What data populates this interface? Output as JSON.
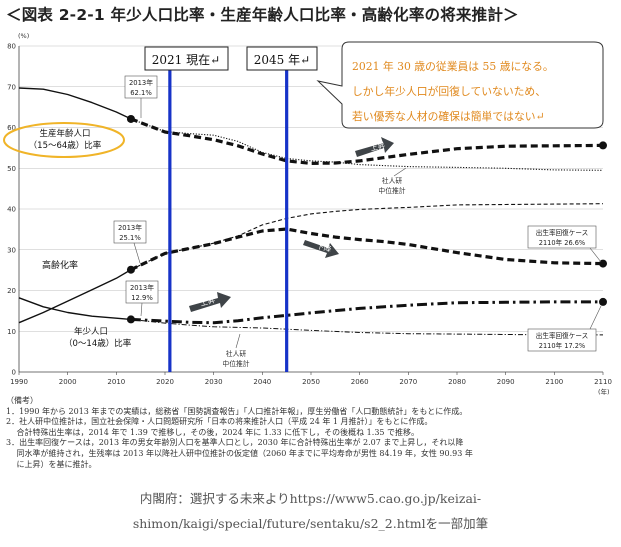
{
  "title": "＜図表 2-2-1 年少人口比率・生産年齢人口比率・高齢化率の将来推計＞",
  "chart_data": {
    "type": "line",
    "y_unit": "(%)",
    "x_unit": "(年)",
    "xlim": [
      1990,
      2110
    ],
    "ylim": [
      0,
      80
    ],
    "x_ticks": [
      1990,
      2000,
      2010,
      2020,
      2030,
      2040,
      2050,
      2060,
      2070,
      2080,
      2090,
      2100,
      2110
    ],
    "y_ticks": [
      0,
      10,
      20,
      30,
      40,
      50,
      60,
      70,
      80
    ],
    "grid": "horizontal",
    "series": [
      {
        "key": "working_actual",
        "style": "solid",
        "x": [
          1990,
          1995,
          2000,
          2005,
          2010,
          2013
        ],
        "y": [
          69.7,
          69.4,
          68.1,
          66.1,
          63.8,
          62.1
        ]
      },
      {
        "key": "working_ipss",
        "style": "dotted",
        "x": [
          2013,
          2020,
          2025,
          2030,
          2035,
          2040,
          2045,
          2050,
          2055,
          2060,
          2070,
          2080,
          2090,
          2100,
          2110
        ],
        "y": [
          62.1,
          59.0,
          58.5,
          58.1,
          56.6,
          53.9,
          52.4,
          51.8,
          51.5,
          50.9,
          50.4,
          50.2,
          50.0,
          49.6,
          49.5
        ]
      },
      {
        "key": "working_recovery",
        "style": "dashed-thick",
        "x": [
          2013,
          2020,
          2025,
          2030,
          2035,
          2040,
          2045,
          2050,
          2055,
          2060,
          2070,
          2080,
          2090,
          2100,
          2110
        ],
        "y": [
          62.1,
          58.9,
          58.0,
          57.0,
          55.5,
          53.5,
          51.8,
          51.2,
          51.3,
          51.8,
          53.4,
          54.8,
          55.4,
          55.5,
          55.6
        ]
      },
      {
        "key": "elderly_actual",
        "style": "solid",
        "x": [
          1990,
          1995,
          2000,
          2005,
          2010,
          2013
        ],
        "y": [
          12.1,
          14.6,
          17.4,
          20.2,
          23.0,
          25.1
        ]
      },
      {
        "key": "elderly_ipss",
        "style": "dashed-thin",
        "x": [
          2013,
          2020,
          2025,
          2030,
          2035,
          2040,
          2045,
          2050,
          2055,
          2060,
          2070,
          2080,
          2090,
          2100,
          2110
        ],
        "y": [
          25.1,
          29.1,
          30.3,
          31.6,
          33.4,
          36.1,
          37.7,
          38.8,
          39.4,
          39.9,
          40.4,
          41.0,
          41.1,
          41.2,
          41.3
        ]
      },
      {
        "key": "elderly_recovery",
        "style": "dashed-thick",
        "x": [
          2013,
          2020,
          2025,
          2030,
          2035,
          2040,
          2045,
          2050,
          2055,
          2060,
          2065,
          2070,
          2080,
          2090,
          2100,
          2110
        ],
        "y": [
          25.1,
          29.1,
          30.3,
          31.5,
          33.1,
          34.6,
          35.1,
          34.0,
          33.1,
          32.5,
          32.0,
          31.3,
          29.3,
          27.6,
          26.8,
          26.6
        ]
      },
      {
        "key": "youth_actual",
        "style": "solid",
        "x": [
          1990,
          1995,
          2000,
          2005,
          2010,
          2013
        ],
        "y": [
          18.2,
          16.0,
          14.6,
          13.7,
          13.2,
          12.9
        ]
      },
      {
        "key": "youth_ipss",
        "style": "dashdot-thin",
        "x": [
          2013,
          2020,
          2025,
          2030,
          2040,
          2050,
          2060,
          2070,
          2080,
          2090,
          2100,
          2110
        ],
        "y": [
          12.9,
          12.0,
          11.5,
          11.1,
          10.8,
          10.2,
          9.7,
          9.4,
          9.3,
          9.2,
          9.1,
          9.1
        ]
      },
      {
        "key": "youth_recovery",
        "style": "dashdot-thick",
        "x": [
          2013,
          2020,
          2025,
          2030,
          2035,
          2040,
          2045,
          2050,
          2060,
          2070,
          2080,
          2090,
          2100,
          2110
        ],
        "y": [
          12.9,
          12.5,
          12.2,
          12.1,
          12.6,
          13.3,
          13.9,
          14.5,
          15.6,
          16.4,
          17.0,
          17.1,
          17.2,
          17.2
        ]
      }
    ],
    "markers": [
      {
        "key": "working",
        "x": 2013,
        "y": 62.1
      },
      {
        "key": "elderly",
        "x": 2013,
        "y": 25.1
      },
      {
        "key": "youth",
        "x": 2013,
        "y": 12.9
      },
      {
        "key": "working_end",
        "x": 2110,
        "y": 55.6
      },
      {
        "key": "elderly_end",
        "x": 2110,
        "y": 26.6
      },
      {
        "key": "youth_end",
        "x": 2110,
        "y": 17.2
      }
    ],
    "vlines": [
      {
        "key": "v2021",
        "x": 2021
      },
      {
        "key": "v2045",
        "x": 2045
      }
    ],
    "vline_labels": {
      "v2021": "2021 現在↵",
      "v2045": "2045 年↵"
    },
    "series_labels": {
      "working_l1": "生産年齢人口",
      "working_l2": "（15～64歳）比率",
      "elderly": "高齢化率",
      "youth_l1": "年少人口",
      "youth_l2": "（0～14歳）比率"
    },
    "annotations": {
      "w2013_l1": "2013年",
      "w2013_l2": "62.1%",
      "e2013_l1": "2013年",
      "e2013_l2": "25.1%",
      "y2013_l1": "2013年",
      "y2013_l2": "12.9%",
      "ipss1_l1": "社人研",
      "ipss1_l2": "中位推計",
      "ipss2_l1": "社人研",
      "ipss2_l2": "中位推計",
      "recov_e_l1": "出生率回復ケース",
      "recov_e_l2": "2110年 26.6%",
      "recov_y_l1": "出生率回復ケース",
      "recov_y_l2": "2110年 17.2%",
      "up1": "上昇",
      "down": "下降",
      "up2": "上昇"
    },
    "callout": [
      "2021 年 30 歳の従業員は 55 歳になる。",
      "しかし年少人口が回復していないため、",
      "若い優秀な人材の確保は簡単ではない↵"
    ],
    "colors": {
      "line": "#111111",
      "vline": "#1733c8",
      "callout_text": "#e0891e",
      "ellipse": "#f0b428",
      "arrow": "#3f4448",
      "grid": "#bfbfbf"
    }
  },
  "notes": [
    "（備考）",
    "1．1990 年から 2013 年までの実績は，総務省「国勢調査報告」「人口推計年報」，厚生労働省「人口動態統計」をもとに作成。",
    "2．社人研中位推計は，国立社会保障・人口問題研究所「日本の将来推計人口（平成 24 年 1 月推計）」をもとに作成。",
    "　 合計特殊出生率は，2014 年で 1.39 で推移し，その後，2024 年に 1.33 に低下し，その後概ね 1.35 で推移。",
    "3．出生率回復ケースは，2013 年の男女年齢別人口を基準人口とし，2030 年に合計特殊出生率が 2.07 まで上昇し，それ以降",
    "　 同水準が維持され，生残率は 2013 年以降社人研中位推計の仮定値（2060 年までに平均寿命が男性 84.19 年，女性 90.93 年",
    "　 に上昇）を基に推計。"
  ],
  "caption": [
    "内閣府：選択する未来よりhttps://www5.cao.go.jp/keizai-",
    "shimon/kaigi/special/future/sentaku/s2_2.htmlを一部加筆"
  ]
}
